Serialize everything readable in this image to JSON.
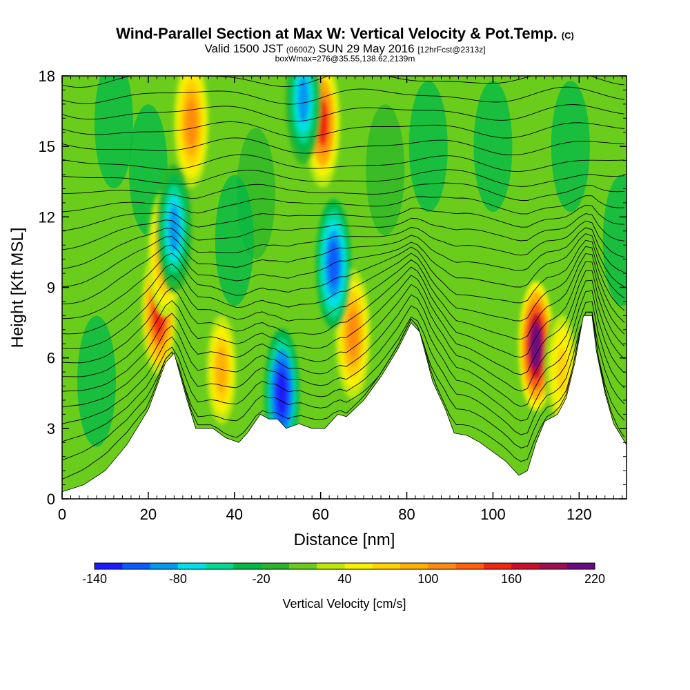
{
  "title": {
    "main": "Wind-Parallel Section at Max W: Vertical Velocity & Pot.Temp.",
    "main_mark": "(C)",
    "valid_prefix": "Valid 1500 JST",
    "valid_z": "(0600Z)",
    "valid_date": "SUN 29 May 2016",
    "valid_fcst": "[12hrFcst@2313z]",
    "box": "boxWmax=276@35.55,138.62,2139m"
  },
  "chart_data": {
    "type": "heatmap",
    "xlabel": "Distance [nm]",
    "ylabel": "Height [Kft MSL]",
    "xlim": [
      0,
      131
    ],
    "ylim": [
      0,
      18
    ],
    "x_ticks": [
      "0",
      "20",
      "40",
      "60",
      "80",
      "100",
      "120"
    ],
    "y_ticks": [
      "0",
      "3",
      "6",
      "9",
      "12",
      "15",
      "18"
    ],
    "colorbar": {
      "label": "Vertical Velocity [cm/s]",
      "tick_labels": [
        "-140",
        "-80",
        "-20",
        "40",
        "100",
        "160",
        "220"
      ],
      "levels": [
        -140,
        -120,
        -100,
        -80,
        -60,
        -40,
        -20,
        0,
        20,
        40,
        60,
        80,
        100,
        120,
        140,
        160,
        180,
        200,
        220
      ],
      "colors": [
        "#1a1aff",
        "#0a5cff",
        "#0099f0",
        "#00e0e8",
        "#00d98f",
        "#00b84a",
        "#2bb52b",
        "#6acd1c",
        "#bde80a",
        "#f7f200",
        "#ffd200",
        "#ffb000",
        "#ff8c10",
        "#ff6010",
        "#f02810",
        "#c8102a",
        "#9c1050",
        "#6a0a80"
      ]
    },
    "terrain_kft": [
      [
        0,
        0.3
      ],
      [
        5,
        0.6
      ],
      [
        10,
        1.2
      ],
      [
        15,
        2.3
      ],
      [
        20,
        3.8
      ],
      [
        24,
        5.8
      ],
      [
        26,
        6.2
      ],
      [
        29,
        4.2
      ],
      [
        31,
        3.0
      ],
      [
        35,
        3.0
      ],
      [
        38,
        2.6
      ],
      [
        41,
        2.4
      ],
      [
        43,
        2.8
      ],
      [
        46,
        3.6
      ],
      [
        48,
        3.4
      ],
      [
        50,
        3.4
      ],
      [
        52,
        3.0
      ],
      [
        55,
        3.2
      ],
      [
        58,
        3.0
      ],
      [
        61,
        3.0
      ],
      [
        64,
        3.6
      ],
      [
        66,
        3.5
      ],
      [
        70,
        4.2
      ],
      [
        74,
        5.2
      ],
      [
        78,
        6.4
      ],
      [
        81,
        7.5
      ],
      [
        83,
        7.1
      ],
      [
        86,
        5.0
      ],
      [
        89,
        3.8
      ],
      [
        91,
        2.8
      ],
      [
        94,
        2.7
      ],
      [
        97,
        2.4
      ],
      [
        100,
        2.0
      ],
      [
        103,
        1.6
      ],
      [
        106,
        1.0
      ],
      [
        108,
        1.2
      ],
      [
        110,
        2.4
      ],
      [
        112,
        3.3
      ],
      [
        115,
        3.6
      ],
      [
        117,
        4.3
      ],
      [
        119,
        5.8
      ],
      [
        121,
        7.8
      ],
      [
        123,
        7.8
      ],
      [
        124,
        6.3
      ],
      [
        126,
        4.5
      ],
      [
        128,
        3.2
      ],
      [
        130,
        2.6
      ],
      [
        131,
        2.3
      ]
    ],
    "updrafts": [
      {
        "x": 22.5,
        "z": 8.0,
        "w": 150
      },
      {
        "x": 24.0,
        "z": 10.5,
        "w": 120
      },
      {
        "x": 30.0,
        "z": 16.0,
        "w": 110
      },
      {
        "x": 37.0,
        "z": 5.5,
        "w": 90
      },
      {
        "x": 60.5,
        "z": 16.0,
        "w": 140
      },
      {
        "x": 67.5,
        "z": 7.0,
        "w": 110
      },
      {
        "x": 110.0,
        "z": 6.5,
        "w": 220
      },
      {
        "x": 116.0,
        "z": 5.5,
        "w": 70
      }
    ],
    "downdrafts": [
      {
        "x": 26.0,
        "z": 11.5,
        "w": -80
      },
      {
        "x": 51.0,
        "z": 4.5,
        "w": -140
      },
      {
        "x": 56.0,
        "z": 17.0,
        "w": -90
      },
      {
        "x": 63.0,
        "z": 10.0,
        "w": -100
      }
    ]
  }
}
